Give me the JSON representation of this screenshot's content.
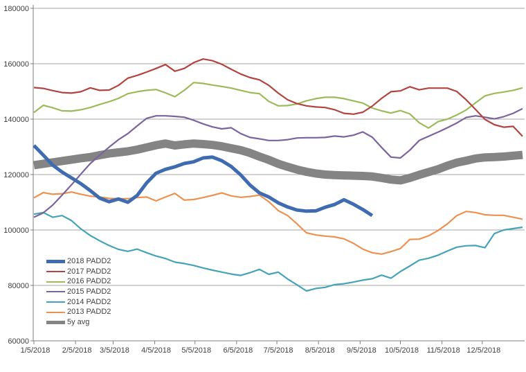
{
  "chart_data": {
    "type": "line",
    "title": "",
    "xlabel": "",
    "ylabel": "",
    "cadence": "weekly",
    "x_axis": {
      "start_label": "1/5/2018",
      "tick_labels": [
        "1/5/2018",
        "2/5/2018",
        "3/5/2018",
        "4/5/2018",
        "5/5/2018",
        "6/5/2018",
        "7/5/2018",
        "8/5/2018",
        "9/5/2018",
        "10/5/2018",
        "11/5/2018",
        "12/5/2018"
      ],
      "tick_days": [
        0,
        31,
        59,
        90,
        120,
        151,
        181,
        212,
        243,
        273,
        304,
        334
      ],
      "total_days": 364
    },
    "y_axis": {
      "min": 60000,
      "max": 180000,
      "step": 20000,
      "tick_labels": [
        "60000",
        "80000",
        "100000",
        "120000",
        "140000",
        "160000",
        "180000"
      ]
    },
    "grid": true,
    "legend_position": "left-inside",
    "draw_order": [
      6,
      4,
      5,
      3,
      2,
      1,
      0
    ],
    "series": [
      {
        "name": "2018 PADD2",
        "color": "#3F6CB0",
        "stroke_width": 5,
        "values": [
          130500,
          127000,
          123400,
          120900,
          118800,
          116700,
          114200,
          111500,
          110200,
          111200,
          110000,
          112500,
          117000,
          120500,
          121900,
          122800,
          124000,
          124600,
          126000,
          126300,
          125000,
          122900,
          119900,
          116200,
          113400,
          111900,
          109800,
          108300,
          107200,
          106800,
          106900,
          108200,
          109200,
          110900,
          109300,
          107400,
          105200
        ]
      },
      {
        "name": "2017 PADD2",
        "color": "#B2433F",
        "stroke_width": 2.2,
        "values": [
          151400,
          151100,
          150300,
          149600,
          149400,
          149900,
          151300,
          150400,
          150500,
          152200,
          154800,
          155800,
          157000,
          158300,
          159700,
          157300,
          158300,
          160400,
          161700,
          161100,
          159800,
          158000,
          156300,
          155000,
          154200,
          152200,
          149400,
          147000,
          145600,
          144800,
          144400,
          144200,
          143400,
          142100,
          141800,
          142500,
          144700,
          147500,
          149900,
          150200,
          151700,
          150600,
          151200,
          151200,
          151200,
          150000,
          147000,
          143500,
          139900,
          138000,
          137100,
          137400,
          133800
        ]
      },
      {
        "name": "2016 PADD2",
        "color": "#9BBB59",
        "stroke_width": 2.2,
        "values": [
          142400,
          145000,
          144100,
          143000,
          142900,
          143400,
          144200,
          145300,
          146300,
          147500,
          149200,
          149900,
          150400,
          150700,
          149500,
          148100,
          150400,
          153200,
          152900,
          152300,
          151800,
          151200,
          150400,
          149600,
          149200,
          146400,
          144800,
          144900,
          145500,
          146600,
          147400,
          147900,
          147900,
          147400,
          146600,
          145800,
          144000,
          143000,
          142200,
          143100,
          141900,
          138700,
          136800,
          139100,
          140000,
          141500,
          143300,
          145900,
          148400,
          149300,
          149800,
          150400,
          151300
        ]
      },
      {
        "name": "2015 PADD2",
        "color": "#7B639C",
        "stroke_width": 2.2,
        "values": [
          104600,
          106200,
          109000,
          112600,
          116300,
          120200,
          124000,
          127000,
          129900,
          132600,
          134800,
          137600,
          140300,
          141200,
          141200,
          141000,
          140700,
          139600,
          138300,
          137200,
          136500,
          136900,
          134800,
          133400,
          132900,
          132300,
          132300,
          132600,
          133200,
          133300,
          133300,
          133400,
          133900,
          133600,
          134200,
          135400,
          133500,
          129800,
          126300,
          126000,
          128800,
          132300,
          133800,
          135300,
          136900,
          138600,
          140600,
          141200,
          140700,
          140100,
          140900,
          142100,
          143800
        ]
      },
      {
        "name": "2014 PADD2",
        "color": "#45A3B8",
        "stroke_width": 2.2,
        "values": [
          105700,
          106300,
          104600,
          105200,
          103400,
          100400,
          98000,
          96100,
          94400,
          93000,
          92300,
          93100,
          91800,
          90600,
          89700,
          88400,
          87900,
          87200,
          86300,
          85500,
          84800,
          84100,
          83600,
          84600,
          85800,
          84000,
          84800,
          82300,
          80200,
          78000,
          78900,
          79300,
          80300,
          80600,
          81200,
          81900,
          82400,
          83700,
          82600,
          85000,
          87000,
          89100,
          89800,
          90900,
          92400,
          93800,
          94300,
          94400,
          93600,
          98700,
          100000,
          100500,
          101000
        ]
      },
      {
        "name": "2013 PADD2",
        "color": "#EC9150",
        "stroke_width": 2.2,
        "values": [
          111600,
          113500,
          112900,
          113100,
          113700,
          112900,
          112200,
          111900,
          111400,
          111300,
          111300,
          111700,
          111900,
          110500,
          111900,
          113200,
          110800,
          111000,
          111700,
          112500,
          113400,
          112300,
          111800,
          112100,
          112600,
          110200,
          107000,
          105200,
          102200,
          99000,
          98200,
          97800,
          97500,
          96800,
          95200,
          93100,
          91800,
          91300,
          92200,
          93300,
          96600,
          96700,
          97900,
          99800,
          102200,
          105200,
          106700,
          106300,
          105500,
          105300,
          105300,
          104600,
          103900
        ]
      },
      {
        "name": "5y avg",
        "color": "#848484",
        "stroke_width": 12,
        "values": [
          123400,
          123900,
          124400,
          124900,
          125400,
          125900,
          126300,
          127000,
          127600,
          128000,
          128400,
          129000,
          129800,
          130600,
          131200,
          130500,
          130900,
          131200,
          131000,
          130700,
          130200,
          129500,
          128800,
          127800,
          126500,
          125300,
          123900,
          122800,
          121800,
          121000,
          120400,
          120000,
          119800,
          119700,
          119600,
          119500,
          119300,
          118800,
          118200,
          117900,
          118800,
          119900,
          120900,
          121900,
          123200,
          124300,
          125000,
          125800,
          126200,
          126300,
          126500,
          126800,
          127100
        ]
      }
    ]
  },
  "colors": {
    "background": "#FFFFFF",
    "gridline": "#A6A6A6",
    "axis": "#7F7F7F",
    "tick_text": "#404040"
  }
}
